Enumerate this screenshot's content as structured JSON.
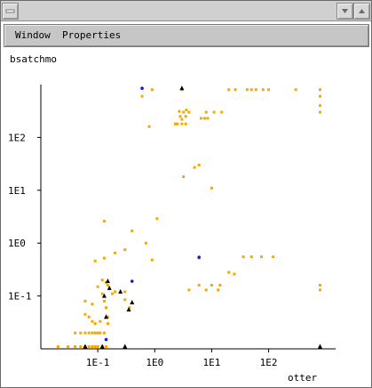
{
  "window": {
    "title": ""
  },
  "menu": {
    "items": [
      {
        "label": "Window"
      },
      {
        "label": "Properties"
      }
    ]
  },
  "chart_data": {
    "type": "scatter",
    "title": "bsatchmo",
    "xlabel": "otter",
    "ylabel": "",
    "xscale": "log",
    "yscale": "log",
    "xticks": [
      "1E-1",
      "1E0",
      "1E1",
      "1E2"
    ],
    "yticks": [
      "1E-1",
      "1E0",
      "1E1",
      "1E2"
    ],
    "xlim": [
      0.01,
      1500
    ],
    "ylim": [
      0.01,
      1000
    ],
    "grid": false,
    "colors": {
      "orange": "#f5a800",
      "blue": "#1a1acc",
      "black": "#000000"
    },
    "series": [
      {
        "marker": "square",
        "color": "#f5a800",
        "points": [
          [
            0.6,
            600
          ],
          [
            0.9,
            800
          ],
          [
            3.0,
            800
          ],
          [
            20,
            800
          ],
          [
            26,
            800
          ],
          [
            42,
            800
          ],
          [
            50,
            800
          ],
          [
            60,
            800
          ],
          [
            80,
            800
          ],
          [
            100,
            800
          ],
          [
            300,
            800
          ],
          [
            800,
            800
          ],
          [
            800,
            600
          ],
          [
            0.8,
            160
          ],
          [
            2.3,
            180
          ],
          [
            2.5,
            180
          ],
          [
            3.0,
            180
          ],
          [
            3.5,
            180
          ],
          [
            3.0,
            220
          ],
          [
            2.8,
            250
          ],
          [
            3.5,
            250
          ],
          [
            3.2,
            300
          ],
          [
            2.7,
            310
          ],
          [
            3.6,
            330
          ],
          [
            4.0,
            300
          ],
          [
            6.5,
            230
          ],
          [
            7.5,
            230
          ],
          [
            8.5,
            230
          ],
          [
            8.0,
            300
          ],
          [
            11,
            300
          ],
          [
            15,
            300
          ],
          [
            800,
            400
          ],
          [
            800,
            300
          ],
          [
            5,
            27
          ],
          [
            6,
            30
          ],
          [
            3.2,
            18
          ],
          [
            10,
            11
          ],
          [
            0.13,
            2.6
          ],
          [
            1.1,
            2.9
          ],
          [
            0.4,
            1.7
          ],
          [
            0.3,
            0.75
          ],
          [
            0.7,
            1.0
          ],
          [
            0.9,
            0.48
          ],
          [
            0.13,
            0.52
          ],
          [
            0.2,
            0.65
          ],
          [
            0.09,
            0.46
          ],
          [
            6,
            0.52
          ],
          [
            20,
            0.28
          ],
          [
            25,
            0.26
          ],
          [
            36,
            0.55
          ],
          [
            50,
            0.55
          ],
          [
            75,
            0.55
          ],
          [
            120,
            0.55
          ],
          [
            0.12,
            0.2
          ],
          [
            0.14,
            0.18
          ],
          [
            0.1,
            0.15
          ],
          [
            0.15,
            0.16
          ],
          [
            0.2,
            0.12
          ],
          [
            0.18,
            0.11
          ],
          [
            0.12,
            0.11
          ],
          [
            0.3,
            0.12
          ],
          [
            4,
            0.13
          ],
          [
            6,
            0.16
          ],
          [
            8,
            0.13
          ],
          [
            10,
            0.16
          ],
          [
            13,
            0.13
          ],
          [
            14,
            0.16
          ],
          [
            800,
            0.16
          ],
          [
            800,
            0.13
          ],
          [
            0.06,
            0.08
          ],
          [
            0.08,
            0.07
          ],
          [
            0.13,
            0.08
          ],
          [
            0.14,
            0.06
          ],
          [
            0.3,
            0.085
          ],
          [
            0.36,
            0.06
          ],
          [
            0.06,
            0.045
          ],
          [
            0.07,
            0.04
          ],
          [
            0.08,
            0.033
          ],
          [
            0.09,
            0.03
          ],
          [
            0.11,
            0.033
          ],
          [
            0.15,
            0.04
          ],
          [
            0.04,
            0.02
          ],
          [
            0.05,
            0.02
          ],
          [
            0.06,
            0.02
          ],
          [
            0.07,
            0.02
          ],
          [
            0.08,
            0.02
          ],
          [
            0.09,
            0.02
          ],
          [
            0.1,
            0.02
          ],
          [
            0.11,
            0.02
          ],
          [
            0.13,
            0.02
          ],
          [
            0.15,
            0.03
          ],
          [
            0.02,
            0.011
          ],
          [
            0.03,
            0.011
          ],
          [
            0.04,
            0.011
          ],
          [
            0.05,
            0.011
          ],
          [
            0.06,
            0.011
          ],
          [
            0.07,
            0.011
          ],
          [
            0.08,
            0.011
          ],
          [
            0.09,
            0.011
          ],
          [
            0.1,
            0.011
          ],
          [
            0.12,
            0.011
          ],
          [
            0.14,
            0.011
          ]
        ]
      },
      {
        "marker": "dot",
        "color": "#1a1acc",
        "points": [
          [
            0.6,
            850
          ],
          [
            6.0,
            0.54
          ],
          [
            0.4,
            0.19
          ],
          [
            0.14,
            0.015
          ]
        ]
      },
      {
        "marker": "triangle",
        "color": "#000000",
        "points": [
          [
            3.0,
            850
          ],
          [
            0.15,
            0.19
          ],
          [
            0.16,
            0.14
          ],
          [
            0.14,
            0.04
          ],
          [
            0.4,
            0.075
          ],
          [
            0.35,
            0.055
          ],
          [
            0.12,
            0.011
          ],
          [
            0.06,
            0.011
          ],
          [
            0.3,
            0.011
          ],
          [
            800,
            0.011
          ],
          [
            0.25,
            0.12
          ],
          [
            0.13,
            0.1
          ]
        ]
      }
    ]
  }
}
